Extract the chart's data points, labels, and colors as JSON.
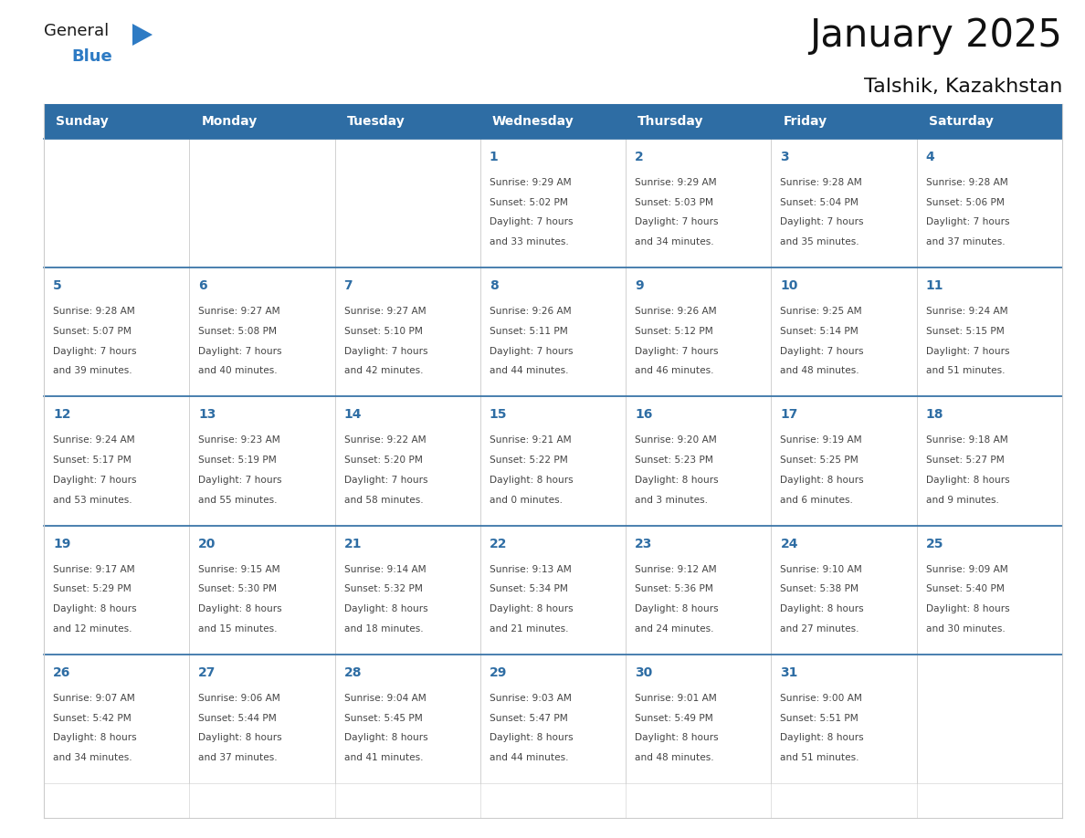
{
  "title": "January 2025",
  "subtitle": "Talshik, Kazakhstan",
  "header_bg": "#2E6DA4",
  "header_text_color": "#FFFFFF",
  "cell_bg_white": "#FFFFFF",
  "grid_color": "#CCCCCC",
  "row_top_line_color": "#2E6DA4",
  "day_number_color": "#2E6DA4",
  "cell_text_color": "#444444",
  "days_of_week": [
    "Sunday",
    "Monday",
    "Tuesday",
    "Wednesday",
    "Thursday",
    "Friday",
    "Saturday"
  ],
  "calendar_data": [
    [
      {
        "day": "",
        "sunrise": "",
        "sunset": "",
        "daylight_line1": "",
        "daylight_line2": ""
      },
      {
        "day": "",
        "sunrise": "",
        "sunset": "",
        "daylight_line1": "",
        "daylight_line2": ""
      },
      {
        "day": "",
        "sunrise": "",
        "sunset": "",
        "daylight_line1": "",
        "daylight_line2": ""
      },
      {
        "day": "1",
        "sunrise": "9:29 AM",
        "sunset": "5:02 PM",
        "daylight_line1": "7 hours",
        "daylight_line2": "and 33 minutes."
      },
      {
        "day": "2",
        "sunrise": "9:29 AM",
        "sunset": "5:03 PM",
        "daylight_line1": "7 hours",
        "daylight_line2": "and 34 minutes."
      },
      {
        "day": "3",
        "sunrise": "9:28 AM",
        "sunset": "5:04 PM",
        "daylight_line1": "7 hours",
        "daylight_line2": "and 35 minutes."
      },
      {
        "day": "4",
        "sunrise": "9:28 AM",
        "sunset": "5:06 PM",
        "daylight_line1": "7 hours",
        "daylight_line2": "and 37 minutes."
      }
    ],
    [
      {
        "day": "5",
        "sunrise": "9:28 AM",
        "sunset": "5:07 PM",
        "daylight_line1": "7 hours",
        "daylight_line2": "and 39 minutes."
      },
      {
        "day": "6",
        "sunrise": "9:27 AM",
        "sunset": "5:08 PM",
        "daylight_line1": "7 hours",
        "daylight_line2": "and 40 minutes."
      },
      {
        "day": "7",
        "sunrise": "9:27 AM",
        "sunset": "5:10 PM",
        "daylight_line1": "7 hours",
        "daylight_line2": "and 42 minutes."
      },
      {
        "day": "8",
        "sunrise": "9:26 AM",
        "sunset": "5:11 PM",
        "daylight_line1": "7 hours",
        "daylight_line2": "and 44 minutes."
      },
      {
        "day": "9",
        "sunrise": "9:26 AM",
        "sunset": "5:12 PM",
        "daylight_line1": "7 hours",
        "daylight_line2": "and 46 minutes."
      },
      {
        "day": "10",
        "sunrise": "9:25 AM",
        "sunset": "5:14 PM",
        "daylight_line1": "7 hours",
        "daylight_line2": "and 48 minutes."
      },
      {
        "day": "11",
        "sunrise": "9:24 AM",
        "sunset": "5:15 PM",
        "daylight_line1": "7 hours",
        "daylight_line2": "and 51 minutes."
      }
    ],
    [
      {
        "day": "12",
        "sunrise": "9:24 AM",
        "sunset": "5:17 PM",
        "daylight_line1": "7 hours",
        "daylight_line2": "and 53 minutes."
      },
      {
        "day": "13",
        "sunrise": "9:23 AM",
        "sunset": "5:19 PM",
        "daylight_line1": "7 hours",
        "daylight_line2": "and 55 minutes."
      },
      {
        "day": "14",
        "sunrise": "9:22 AM",
        "sunset": "5:20 PM",
        "daylight_line1": "7 hours",
        "daylight_line2": "and 58 minutes."
      },
      {
        "day": "15",
        "sunrise": "9:21 AM",
        "sunset": "5:22 PM",
        "daylight_line1": "8 hours",
        "daylight_line2": "and 0 minutes."
      },
      {
        "day": "16",
        "sunrise": "9:20 AM",
        "sunset": "5:23 PM",
        "daylight_line1": "8 hours",
        "daylight_line2": "and 3 minutes."
      },
      {
        "day": "17",
        "sunrise": "9:19 AM",
        "sunset": "5:25 PM",
        "daylight_line1": "8 hours",
        "daylight_line2": "and 6 minutes."
      },
      {
        "day": "18",
        "sunrise": "9:18 AM",
        "sunset": "5:27 PM",
        "daylight_line1": "8 hours",
        "daylight_line2": "and 9 minutes."
      }
    ],
    [
      {
        "day": "19",
        "sunrise": "9:17 AM",
        "sunset": "5:29 PM",
        "daylight_line1": "8 hours",
        "daylight_line2": "and 12 minutes."
      },
      {
        "day": "20",
        "sunrise": "9:15 AM",
        "sunset": "5:30 PM",
        "daylight_line1": "8 hours",
        "daylight_line2": "and 15 minutes."
      },
      {
        "day": "21",
        "sunrise": "9:14 AM",
        "sunset": "5:32 PM",
        "daylight_line1": "8 hours",
        "daylight_line2": "and 18 minutes."
      },
      {
        "day": "22",
        "sunrise": "9:13 AM",
        "sunset": "5:34 PM",
        "daylight_line1": "8 hours",
        "daylight_line2": "and 21 minutes."
      },
      {
        "day": "23",
        "sunrise": "9:12 AM",
        "sunset": "5:36 PM",
        "daylight_line1": "8 hours",
        "daylight_line2": "and 24 minutes."
      },
      {
        "day": "24",
        "sunrise": "9:10 AM",
        "sunset": "5:38 PM",
        "daylight_line1": "8 hours",
        "daylight_line2": "and 27 minutes."
      },
      {
        "day": "25",
        "sunrise": "9:09 AM",
        "sunset": "5:40 PM",
        "daylight_line1": "8 hours",
        "daylight_line2": "and 30 minutes."
      }
    ],
    [
      {
        "day": "26",
        "sunrise": "9:07 AM",
        "sunset": "5:42 PM",
        "daylight_line1": "8 hours",
        "daylight_line2": "and 34 minutes."
      },
      {
        "day": "27",
        "sunrise": "9:06 AM",
        "sunset": "5:44 PM",
        "daylight_line1": "8 hours",
        "daylight_line2": "and 37 minutes."
      },
      {
        "day": "28",
        "sunrise": "9:04 AM",
        "sunset": "5:45 PM",
        "daylight_line1": "8 hours",
        "daylight_line2": "and 41 minutes."
      },
      {
        "day": "29",
        "sunrise": "9:03 AM",
        "sunset": "5:47 PM",
        "daylight_line1": "8 hours",
        "daylight_line2": "and 44 minutes."
      },
      {
        "day": "30",
        "sunrise": "9:01 AM",
        "sunset": "5:49 PM",
        "daylight_line1": "8 hours",
        "daylight_line2": "and 48 minutes."
      },
      {
        "day": "31",
        "sunrise": "9:00 AM",
        "sunset": "5:51 PM",
        "daylight_line1": "8 hours",
        "daylight_line2": "and 51 minutes."
      },
      {
        "day": "",
        "sunrise": "",
        "sunset": "",
        "daylight_line1": "",
        "daylight_line2": ""
      }
    ]
  ],
  "logo_general_color": "#1a1a1a",
  "logo_blue_color": "#2E7BC4",
  "figsize": [
    11.88,
    9.18
  ],
  "dpi": 100
}
